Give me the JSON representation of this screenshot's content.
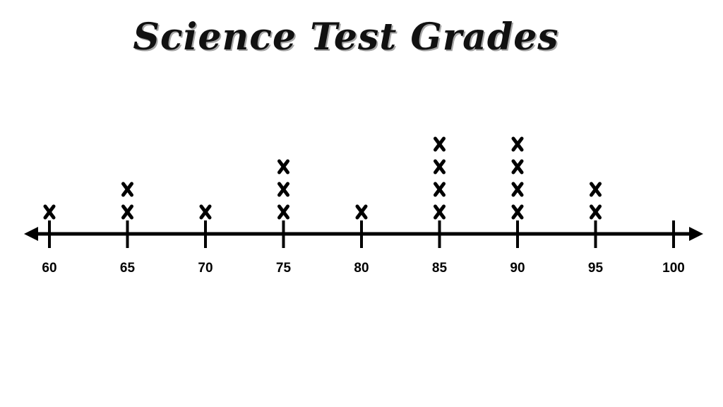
{
  "chart_data": {
    "type": "line_plot",
    "title": "Science Test Grades",
    "xlabel": "",
    "ylabel": "",
    "xlim": [
      60,
      100
    ],
    "ticks": [
      60,
      65,
      70,
      75,
      80,
      85,
      90,
      95,
      100
    ],
    "tick_labels": [
      "60",
      "65",
      "70",
      "75",
      "80",
      "85",
      "90",
      "95",
      "100"
    ],
    "mark_symbol": "x",
    "points": [
      {
        "x": 60,
        "count": 1
      },
      {
        "x": 65,
        "count": 2
      },
      {
        "x": 70,
        "count": 1
      },
      {
        "x": 75,
        "count": 3
      },
      {
        "x": 80,
        "count": 1
      },
      {
        "x": 85,
        "count": 4
      },
      {
        "x": 90,
        "count": 4
      },
      {
        "x": 95,
        "count": 2
      },
      {
        "x": 100,
        "count": 0
      }
    ],
    "grid": false,
    "colors": {
      "axis": "#000000",
      "marks": "#000000",
      "background": "#ffffff"
    }
  }
}
